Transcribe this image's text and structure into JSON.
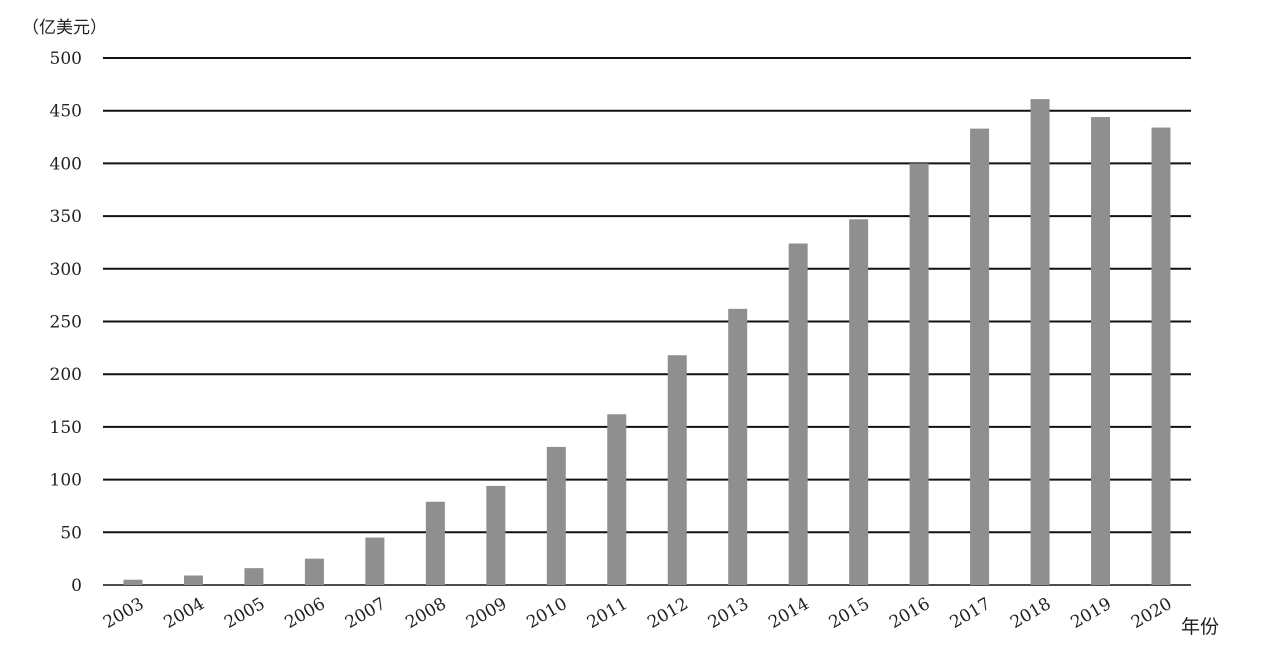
{
  "chart_data": {
    "type": "bar",
    "ylabel": "（亿美元）",
    "xlabel": "年份",
    "categories": [
      "2003",
      "2004",
      "2005",
      "2006",
      "2007",
      "2008",
      "2009",
      "2010",
      "2011",
      "2012",
      "2013",
      "2014",
      "2015",
      "2016",
      "2017",
      "2018",
      "2019",
      "2020"
    ],
    "values": [
      5,
      9,
      16,
      25,
      45,
      79,
      94,
      131,
      162,
      218,
      262,
      324,
      347,
      400,
      433,
      461,
      444,
      434
    ],
    "ylim": [
      0,
      500
    ],
    "yticks": [
      "0",
      "50",
      "100",
      "150",
      "200",
      "250",
      "300",
      "350",
      "400",
      "450",
      "500"
    ],
    "grid": "horizontal",
    "legend": "none",
    "colors": {
      "bar": "#8f8f8f",
      "grid": "#111111",
      "text": "#222222"
    }
  }
}
